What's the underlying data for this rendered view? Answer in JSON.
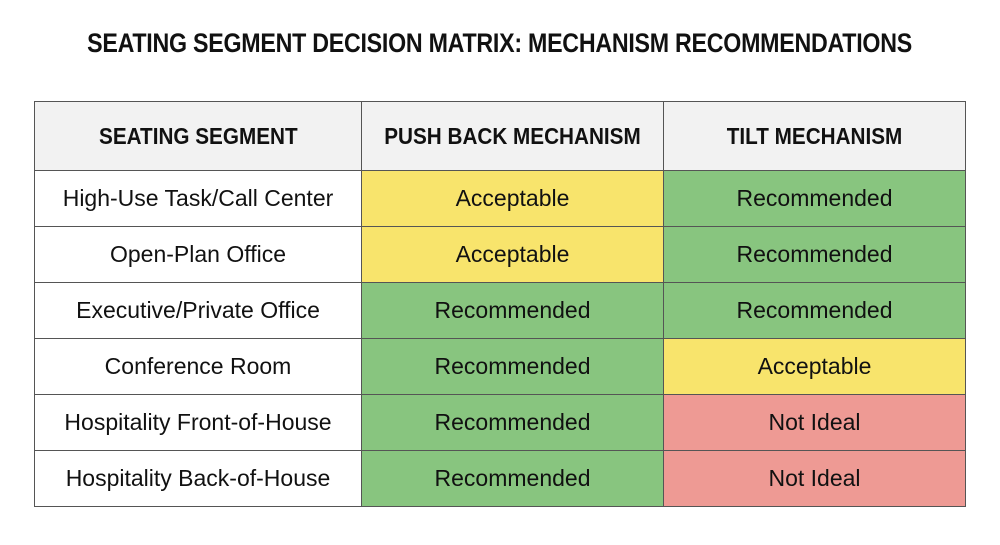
{
  "header": {
    "title": "SEATING SEGMENT DECISION MATRIX: MECHANISM RECOMMENDATIONS"
  },
  "table": {
    "columns": [
      "SEATING SEGMENT",
      "PUSH BACK MECHANISM",
      "TILT MECHANISM"
    ],
    "rows": [
      {
        "segment": "High-Use Task/Call Center",
        "cells": [
          {
            "text": "Acceptable",
            "color": "#f8e46c"
          },
          {
            "text": "Recommended",
            "color": "#88c57f"
          }
        ]
      },
      {
        "segment": "Open-Plan Office",
        "cells": [
          {
            "text": "Acceptable",
            "color": "#f8e46c"
          },
          {
            "text": "Recommended",
            "color": "#88c57f"
          }
        ]
      },
      {
        "segment": "Executive/Private Office",
        "cells": [
          {
            "text": "Recommended",
            "color": "#88c57f"
          },
          {
            "text": "Recommended",
            "color": "#88c57f"
          }
        ]
      },
      {
        "segment": "Conference Room",
        "cells": [
          {
            "text": "Recommended",
            "color": "#88c57f"
          },
          {
            "text": "Acceptable",
            "color": "#f8e46c"
          }
        ]
      },
      {
        "segment": "Hospitality Front-of-House",
        "cells": [
          {
            "text": "Recommended",
            "color": "#88c57f"
          },
          {
            "text": "Not Ideal",
            "color": "#ee9a94"
          }
        ]
      },
      {
        "segment": "Hospitality Back-of-House",
        "cells": [
          {
            "text": "Recommended",
            "color": "#88c57f"
          },
          {
            "text": "Not Ideal",
            "color": "#ee9a94"
          }
        ]
      }
    ]
  }
}
